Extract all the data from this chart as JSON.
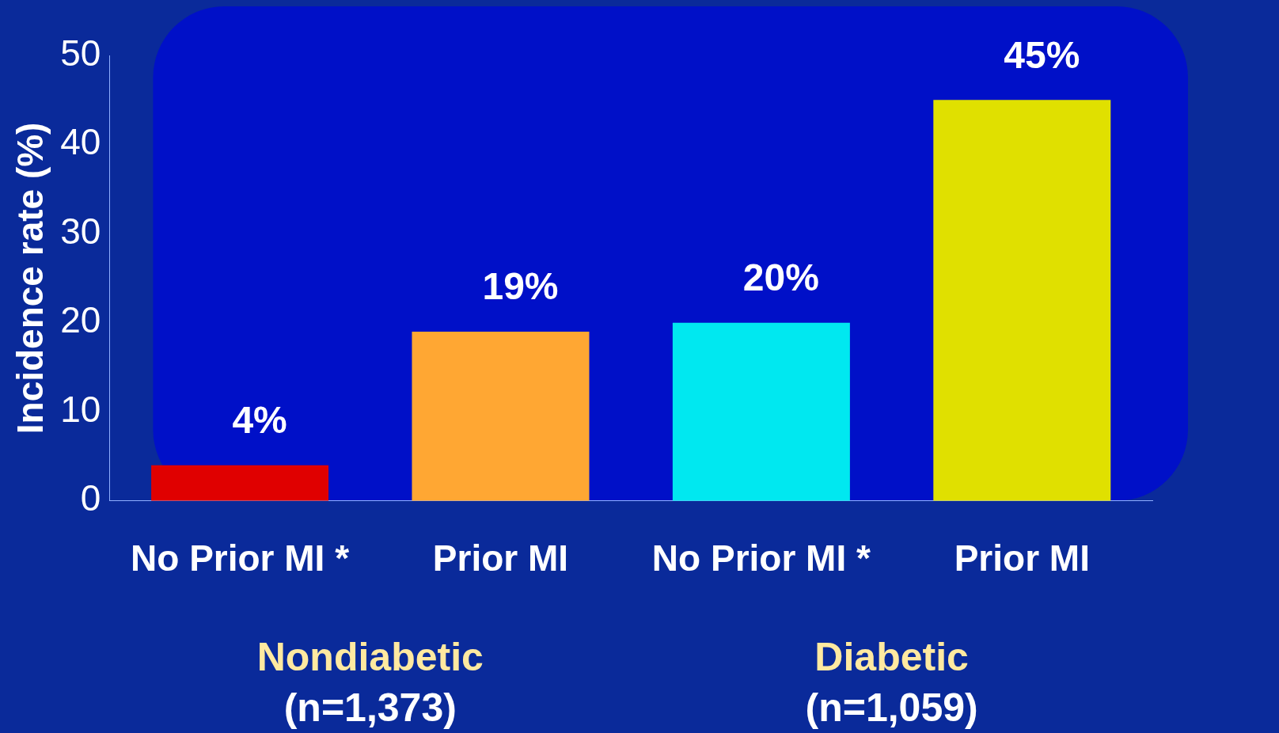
{
  "chart_data": {
    "type": "bar",
    "ylabel": "Incidence rate (%)",
    "categories": [
      "No Prior MI *",
      "Prior MI",
      "No Prior MI *",
      "Prior MI"
    ],
    "values": [
      4,
      19,
      20,
      45
    ],
    "colors": [
      "#e00000",
      "#ffa733",
      "#00e8f0",
      "#e0e000"
    ],
    "value_labels": [
      "4%",
      "19%",
      "20%",
      "45%"
    ],
    "ylim": [
      0,
      50
    ],
    "yticks": [
      0,
      10,
      20,
      30,
      40,
      50
    ],
    "grid": false,
    "legend": false,
    "annotations": [
      "Nondiabetic",
      "(n=1,373)",
      "Diabetic",
      "(n=1,059)"
    ]
  }
}
